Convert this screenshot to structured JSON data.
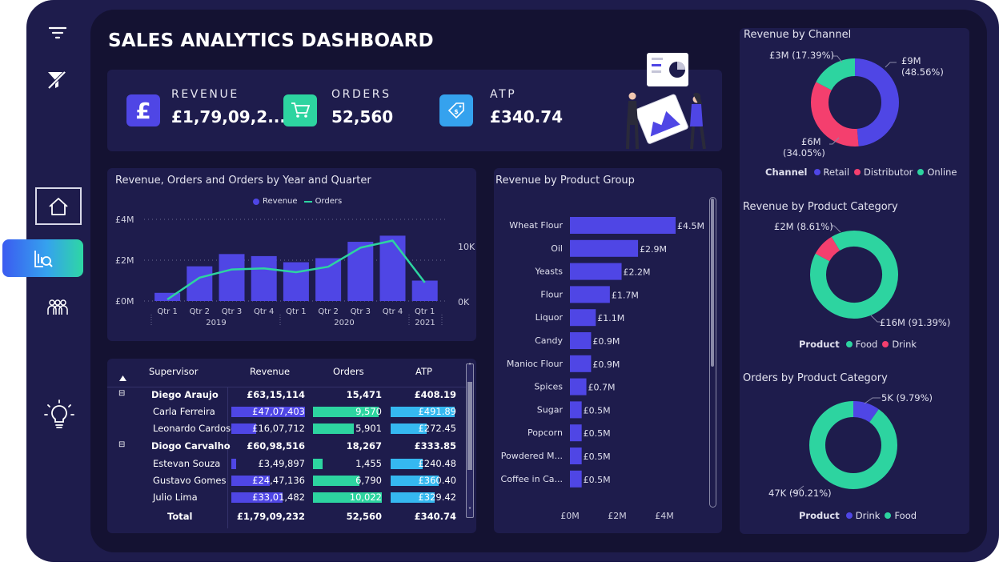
{
  "title": "SALES ANALYTICS DASHBOARD",
  "colors": {
    "accent": "#4f46e5",
    "green": "#2dd4a0",
    "pink": "#f43f6e",
    "cyan": "#35b8f0",
    "panel": "#1e1c4c",
    "bg": "#141232"
  },
  "sidebar": {
    "icons": [
      "filter-icon",
      "clear-filter-icon",
      "home-icon",
      "analytics-icon",
      "team-icon",
      "bulb-icon"
    ]
  },
  "kpis": [
    {
      "label": "REVENUE",
      "value": "£1,79,09,2...",
      "icon": "pound-icon",
      "color": "#4f46e5"
    },
    {
      "label": "ORDERS",
      "value": "52,560",
      "icon": "cart-icon",
      "color": "#2dd4a0"
    },
    {
      "label": "ATP",
      "value": "£340.74",
      "icon": "tag-icon",
      "color": "#35a2ee"
    }
  ],
  "combo_chart": {
    "title": "Revenue, Orders and Orders by Year and Quarter",
    "legend": [
      "Revenue",
      "Orders"
    ],
    "y_left_ticks": [
      "£4M",
      "£2M",
      "£0M"
    ],
    "y_right_ticks": [
      "10K",
      "0K"
    ],
    "quarters": [
      "Qtr 1",
      "Qtr 2",
      "Qtr 3",
      "Qtr 4",
      "Qtr 1",
      "Qtr 2",
      "Qtr 3",
      "Qtr 4",
      "Qtr 1"
    ],
    "years": [
      "2019",
      "2020",
      "2021"
    ]
  },
  "product_group": {
    "title": "Revenue by Product Group",
    "x_ticks": [
      "£0M",
      "£2M",
      "£4M"
    ]
  },
  "table": {
    "headers": [
      "Supervisor",
      "Revenue",
      "Orders",
      "ATP"
    ],
    "rows": [
      {
        "name": "Diego Araujo",
        "revenue": "£63,15,114",
        "orders": "15,471",
        "atp": "£408.19",
        "group": true
      },
      {
        "name": "Carla Ferreira",
        "revenue": "£47,07,403",
        "orders": "9,570",
        "atp": "£491.89",
        "rev_frac": 1.0,
        "ord_frac": 0.93,
        "atp_frac": 0.98
      },
      {
        "name": "Leonardo Cardoso",
        "revenue": "£16,07,712",
        "orders": "5,901",
        "atp": "£272.45",
        "rev_frac": 0.34,
        "ord_frac": 0.58,
        "atp_frac": 0.55
      },
      {
        "name": "Diogo Carvalho",
        "revenue": "£60,98,516",
        "orders": "18,267",
        "atp": "£333.85",
        "group": true
      },
      {
        "name": "Estevan Souza",
        "revenue": "£3,49,897",
        "orders": "1,455",
        "atp": "£240.48",
        "rev_frac": 0.07,
        "ord_frac": 0.14,
        "atp_frac": 0.49
      },
      {
        "name": "Gustavo Gomes",
        "revenue": "£24,47,136",
        "orders": "6,790",
        "atp": "£360.40",
        "rev_frac": 0.52,
        "ord_frac": 0.66,
        "atp_frac": 0.73
      },
      {
        "name": "Julio Lima",
        "revenue": "£33,01,482",
        "orders": "10,022",
        "atp": "£329.42",
        "rev_frac": 0.7,
        "ord_frac": 0.98,
        "atp_frac": 0.67
      },
      {
        "name": "Total",
        "revenue": "£1,79,09,232",
        "orders": "52,560",
        "atp": "£340.74",
        "total": true
      }
    ]
  },
  "donut_channel": {
    "title": "Revenue by Channel",
    "legend_title": "Channel",
    "legend": [
      {
        "label": "Retail",
        "color": "#4f46e5"
      },
      {
        "label": "Distributor",
        "color": "#f43f6e"
      },
      {
        "label": "Online",
        "color": "#2dd4a0"
      }
    ],
    "labels": {
      "top_left": "£3M (17.39%)",
      "right_1": "£9M",
      "right_2": "(48.56%)",
      "bottom_1": "£6M",
      "bottom_2": "(34.05%)"
    }
  },
  "donut_product_rev": {
    "title": "Revenue by Product Category",
    "legend_title": "Product",
    "legend": [
      {
        "label": "Food",
        "color": "#2dd4a0"
      },
      {
        "label": "Drink",
        "color": "#f43f6e"
      }
    ],
    "labels": {
      "top": "£2M (8.61%)",
      "bottom": "£16M (91.39%)"
    }
  },
  "donut_product_ord": {
    "title": "Orders by Product Category",
    "legend_title": "Product",
    "legend": [
      {
        "label": "Drink",
        "color": "#4f46e5"
      },
      {
        "label": "Food",
        "color": "#2dd4a0"
      }
    ],
    "labels": {
      "top": "5K (9.79%)",
      "bottom": "47K (90.21%)"
    }
  },
  "chart_data": [
    {
      "type": "bar",
      "title": "Revenue, Orders and Orders by Year and Quarter",
      "categories": [
        "2019 Qtr 1",
        "2019 Qtr 2",
        "2019 Qtr 3",
        "2019 Qtr 4",
        "2020 Qtr 1",
        "2020 Qtr 2",
        "2020 Qtr 3",
        "2020 Qtr 4",
        "2021 Qtr 1"
      ],
      "series": [
        {
          "name": "Revenue",
          "type": "bar",
          "values": [
            0.4,
            1.7,
            2.3,
            2.2,
            1.9,
            2.1,
            2.9,
            3.2,
            1.0
          ]
        },
        {
          "name": "Orders",
          "type": "line",
          "values": [
            300,
            4300,
            5800,
            6000,
            5300,
            6300,
            9800,
            11100,
            3400
          ]
        }
      ],
      "ylim": [
        0,
        4
      ],
      "y2lim": [
        0,
        10000
      ]
    },
    {
      "type": "bar",
      "title": "Revenue by Product Group",
      "categories": [
        "Wheat Flour",
        "Oil",
        "Yeasts",
        "Flour",
        "Liquor",
        "Candy",
        "Manioc Flour",
        "Spices",
        "Sugar",
        "Popcorn",
        "Powdered M...",
        "Coffee in Ca..."
      ],
      "values": [
        4.5,
        2.9,
        2.2,
        1.7,
        1.1,
        0.9,
        0.9,
        0.7,
        0.5,
        0.5,
        0.5,
        0.5
      ],
      "data_labels": [
        "£4.5M",
        "£2.9M",
        "£2.2M",
        "£1.7M",
        "£1.1M",
        "£0.9M",
        "£0.9M",
        "£0.7M",
        "£0.5M",
        "£0.5M",
        "£0.5M",
        "£0.5M"
      ],
      "xlim": [
        0,
        4.6
      ]
    },
    {
      "type": "pie",
      "title": "Revenue by Channel",
      "categories": [
        "Retail",
        "Distributor",
        "Online"
      ],
      "values": [
        48.56,
        34.05,
        17.39
      ],
      "colors": [
        "#4f46e5",
        "#f43f6e",
        "#2dd4a0"
      ]
    },
    {
      "type": "pie",
      "title": "Revenue by Product Category",
      "categories": [
        "Drink",
        "Food"
      ],
      "values": [
        8.61,
        91.39
      ],
      "colors": [
        "#f43f6e",
        "#2dd4a0"
      ]
    },
    {
      "type": "pie",
      "title": "Orders by Product Category",
      "categories": [
        "Drink",
        "Food"
      ],
      "values": [
        9.79,
        90.21
      ],
      "colors": [
        "#4f46e5",
        "#2dd4a0"
      ]
    }
  ]
}
